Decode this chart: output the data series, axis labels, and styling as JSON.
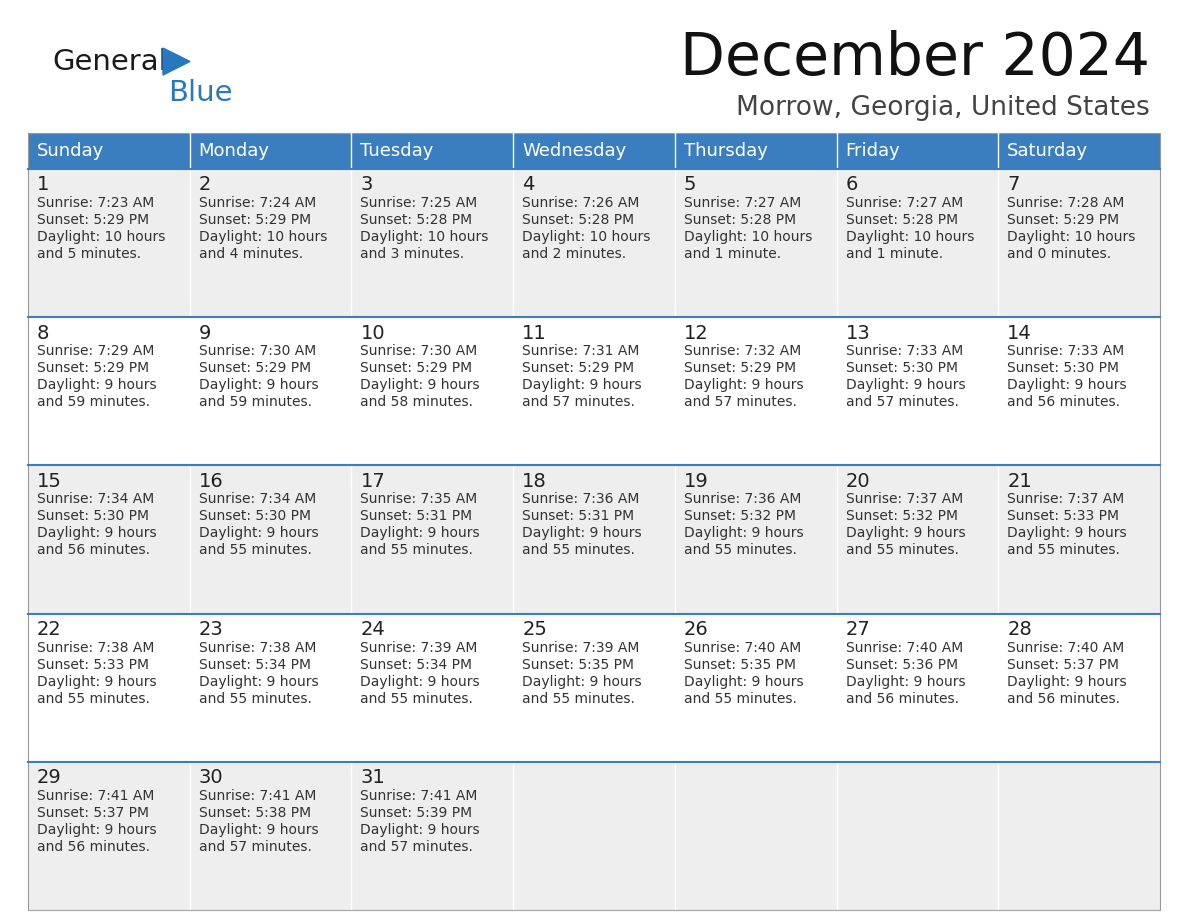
{
  "title": "December 2024",
  "subtitle": "Morrow, Georgia, United States",
  "header_bg": "#3a7ebf",
  "header_text_color": "#ffffff",
  "days_of_week": [
    "Sunday",
    "Monday",
    "Tuesday",
    "Wednesday",
    "Thursday",
    "Friday",
    "Saturday"
  ],
  "cell_bg_light": "#eeeeee",
  "cell_bg_white": "#ffffff",
  "separator_color": "#3a7ebf",
  "text_color": "#333333",
  "logo_general_color": "#1a1a1a",
  "logo_blue_color": "#2878be",
  "weeks": [
    [
      {
        "day": 1,
        "sunrise": "7:23 AM",
        "sunset": "5:29 PM",
        "daylight_line1": "10 hours",
        "daylight_line2": "and 5 minutes."
      },
      {
        "day": 2,
        "sunrise": "7:24 AM",
        "sunset": "5:29 PM",
        "daylight_line1": "10 hours",
        "daylight_line2": "and 4 minutes."
      },
      {
        "day": 3,
        "sunrise": "7:25 AM",
        "sunset": "5:28 PM",
        "daylight_line1": "10 hours",
        "daylight_line2": "and 3 minutes."
      },
      {
        "day": 4,
        "sunrise": "7:26 AM",
        "sunset": "5:28 PM",
        "daylight_line1": "10 hours",
        "daylight_line2": "and 2 minutes."
      },
      {
        "day": 5,
        "sunrise": "7:27 AM",
        "sunset": "5:28 PM",
        "daylight_line1": "10 hours",
        "daylight_line2": "and 1 minute."
      },
      {
        "day": 6,
        "sunrise": "7:27 AM",
        "sunset": "5:28 PM",
        "daylight_line1": "10 hours",
        "daylight_line2": "and 1 minute."
      },
      {
        "day": 7,
        "sunrise": "7:28 AM",
        "sunset": "5:29 PM",
        "daylight_line1": "10 hours",
        "daylight_line2": "and 0 minutes."
      }
    ],
    [
      {
        "day": 8,
        "sunrise": "7:29 AM",
        "sunset": "5:29 PM",
        "daylight_line1": "9 hours",
        "daylight_line2": "and 59 minutes."
      },
      {
        "day": 9,
        "sunrise": "7:30 AM",
        "sunset": "5:29 PM",
        "daylight_line1": "9 hours",
        "daylight_line2": "and 59 minutes."
      },
      {
        "day": 10,
        "sunrise": "7:30 AM",
        "sunset": "5:29 PM",
        "daylight_line1": "9 hours",
        "daylight_line2": "and 58 minutes."
      },
      {
        "day": 11,
        "sunrise": "7:31 AM",
        "sunset": "5:29 PM",
        "daylight_line1": "9 hours",
        "daylight_line2": "and 57 minutes."
      },
      {
        "day": 12,
        "sunrise": "7:32 AM",
        "sunset": "5:29 PM",
        "daylight_line1": "9 hours",
        "daylight_line2": "and 57 minutes."
      },
      {
        "day": 13,
        "sunrise": "7:33 AM",
        "sunset": "5:30 PM",
        "daylight_line1": "9 hours",
        "daylight_line2": "and 57 minutes."
      },
      {
        "day": 14,
        "sunrise": "7:33 AM",
        "sunset": "5:30 PM",
        "daylight_line1": "9 hours",
        "daylight_line2": "and 56 minutes."
      }
    ],
    [
      {
        "day": 15,
        "sunrise": "7:34 AM",
        "sunset": "5:30 PM",
        "daylight_line1": "9 hours",
        "daylight_line2": "and 56 minutes."
      },
      {
        "day": 16,
        "sunrise": "7:34 AM",
        "sunset": "5:30 PM",
        "daylight_line1": "9 hours",
        "daylight_line2": "and 55 minutes."
      },
      {
        "day": 17,
        "sunrise": "7:35 AM",
        "sunset": "5:31 PM",
        "daylight_line1": "9 hours",
        "daylight_line2": "and 55 minutes."
      },
      {
        "day": 18,
        "sunrise": "7:36 AM",
        "sunset": "5:31 PM",
        "daylight_line1": "9 hours",
        "daylight_line2": "and 55 minutes."
      },
      {
        "day": 19,
        "sunrise": "7:36 AM",
        "sunset": "5:32 PM",
        "daylight_line1": "9 hours",
        "daylight_line2": "and 55 minutes."
      },
      {
        "day": 20,
        "sunrise": "7:37 AM",
        "sunset": "5:32 PM",
        "daylight_line1": "9 hours",
        "daylight_line2": "and 55 minutes."
      },
      {
        "day": 21,
        "sunrise": "7:37 AM",
        "sunset": "5:33 PM",
        "daylight_line1": "9 hours",
        "daylight_line2": "and 55 minutes."
      }
    ],
    [
      {
        "day": 22,
        "sunrise": "7:38 AM",
        "sunset": "5:33 PM",
        "daylight_line1": "9 hours",
        "daylight_line2": "and 55 minutes."
      },
      {
        "day": 23,
        "sunrise": "7:38 AM",
        "sunset": "5:34 PM",
        "daylight_line1": "9 hours",
        "daylight_line2": "and 55 minutes."
      },
      {
        "day": 24,
        "sunrise": "7:39 AM",
        "sunset": "5:34 PM",
        "daylight_line1": "9 hours",
        "daylight_line2": "and 55 minutes."
      },
      {
        "day": 25,
        "sunrise": "7:39 AM",
        "sunset": "5:35 PM",
        "daylight_line1": "9 hours",
        "daylight_line2": "and 55 minutes."
      },
      {
        "day": 26,
        "sunrise": "7:40 AM",
        "sunset": "5:35 PM",
        "daylight_line1": "9 hours",
        "daylight_line2": "and 55 minutes."
      },
      {
        "day": 27,
        "sunrise": "7:40 AM",
        "sunset": "5:36 PM",
        "daylight_line1": "9 hours",
        "daylight_line2": "and 56 minutes."
      },
      {
        "day": 28,
        "sunrise": "7:40 AM",
        "sunset": "5:37 PM",
        "daylight_line1": "9 hours",
        "daylight_line2": "and 56 minutes."
      }
    ],
    [
      {
        "day": 29,
        "sunrise": "7:41 AM",
        "sunset": "5:37 PM",
        "daylight_line1": "9 hours",
        "daylight_line2": "and 56 minutes."
      },
      {
        "day": 30,
        "sunrise": "7:41 AM",
        "sunset": "5:38 PM",
        "daylight_line1": "9 hours",
        "daylight_line2": "and 57 minutes."
      },
      {
        "day": 31,
        "sunrise": "7:41 AM",
        "sunset": "5:39 PM",
        "daylight_line1": "9 hours",
        "daylight_line2": "and 57 minutes."
      },
      null,
      null,
      null,
      null
    ]
  ]
}
